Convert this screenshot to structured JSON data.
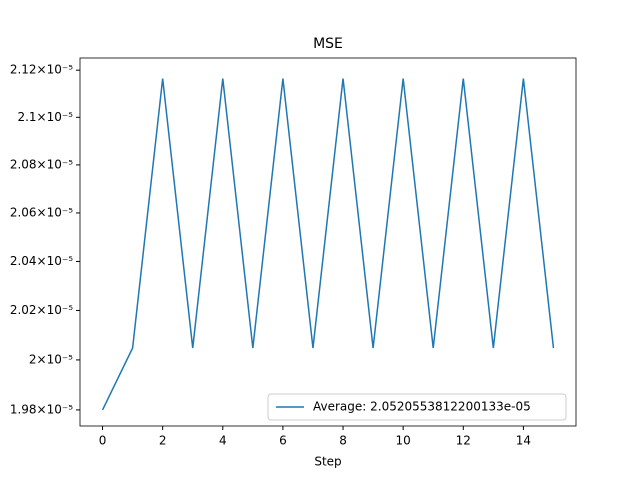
{
  "chart_data": {
    "type": "line",
    "title": "MSE",
    "x_label": "Step",
    "x": [
      0,
      1,
      2,
      3,
      4,
      5,
      6,
      7,
      8,
      9,
      10,
      11,
      12,
      13,
      14,
      15
    ],
    "series": [
      {
        "name": "Average: 2.0520553812200133e-05",
        "color": "#1f77b4",
        "values": [
          1.98e-05,
          2.0048e-05,
          2.1164e-05,
          2.0048e-05,
          2.1164e-05,
          2.0048e-05,
          2.1164e-05,
          2.0048e-05,
          2.1164e-05,
          2.0048e-05,
          2.1164e-05,
          2.0048e-05,
          2.1164e-05,
          2.0048e-05,
          2.1164e-05,
          2.0048e-05
        ]
      }
    ],
    "xlim": [
      -0.75,
      15.75
    ],
    "xticks": [
      0,
      2,
      4,
      6,
      8,
      10,
      12,
      14
    ],
    "ylim": [
      1.9736e-05,
      2.1252e-05
    ],
    "yscale": "log",
    "yticks": [
      {
        "value": 1.98e-05,
        "label": "1.98×10⁻⁵"
      },
      {
        "value": 2e-05,
        "label": "2×10⁻⁵"
      },
      {
        "value": 2.02e-05,
        "label": "2.02×10⁻⁵"
      },
      {
        "value": 2.04e-05,
        "label": "2.04×10⁻⁵"
      },
      {
        "value": 2.06e-05,
        "label": "2.06×10⁻⁵"
      },
      {
        "value": 2.08e-05,
        "label": "2.08×10⁻⁵"
      },
      {
        "value": 2.1e-05,
        "label": "2.1×10⁻⁵"
      },
      {
        "value": 2.12e-05,
        "label": "2.12×10⁻⁵"
      }
    ],
    "legend": "lower right"
  }
}
